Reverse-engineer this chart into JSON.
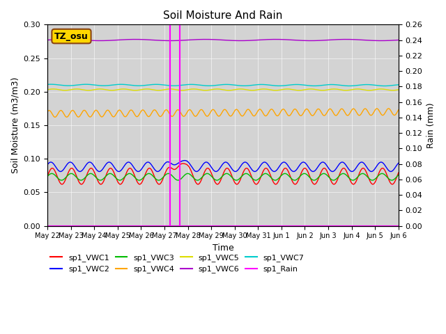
{
  "title": "Soil Moisture And Rain",
  "xlabel": "Time",
  "ylabel_left": "Soil Moisture (m3/m3)",
  "ylabel_right": "Rain (mm)",
  "annotation_text": "TZ_osu",
  "annotation_box_color": "#FFD700",
  "annotation_border_color": "#8B4513",
  "ylim_left": [
    0.0,
    0.3
  ],
  "ylim_right": [
    0.0,
    0.26
  ],
  "background_color": "#d3d3d3",
  "vline_positions": [
    5.25,
    5.65
  ],
  "vline_color": "#FF00FF",
  "series_order": [
    "sp1_VWC1",
    "sp1_VWC2",
    "sp1_VWC3",
    "sp1_VWC4",
    "sp1_VWC5",
    "sp1_VWC6",
    "sp1_VWC7"
  ],
  "series": {
    "sp1_VWC1": {
      "color": "#FF0000",
      "base": 0.074,
      "amp": 0.012,
      "period": 0.83,
      "phase": 0.0,
      "trend": 0.0
    },
    "sp1_VWC2": {
      "color": "#0000FF",
      "base": 0.088,
      "amp": 0.007,
      "period": 0.83,
      "phase": 0.15,
      "trend": 0.0
    },
    "sp1_VWC3": {
      "color": "#00BB00",
      "base": 0.073,
      "amp": 0.005,
      "period": 0.83,
      "phase": 0.05,
      "trend": 0.0
    },
    "sp1_VWC4": {
      "color": "#FFA500",
      "base": 0.167,
      "amp": 0.005,
      "period": 0.5,
      "phase": 0.2,
      "trend": 0.0002
    },
    "sp1_VWC5": {
      "color": "#DDDD00",
      "base": 0.203,
      "amp": 0.001,
      "period": 1.0,
      "phase": 0.0,
      "trend": 0.0
    },
    "sp1_VWC6": {
      "color": "#AA00CC",
      "base": 0.277,
      "amp": 0.001,
      "period": 3.0,
      "phase": 0.0,
      "trend": 0.0
    },
    "sp1_VWC7": {
      "color": "#00CCCC",
      "base": 0.21,
      "amp": 0.001,
      "period": 1.5,
      "phase": 0.3,
      "trend": -3e-05
    }
  },
  "legend_entries": [
    {
      "label": "sp1_VWC1",
      "color": "#FF0000"
    },
    {
      "label": "sp1_VWC2",
      "color": "#0000FF"
    },
    {
      "label": "sp1_VWC3",
      "color": "#00BB00"
    },
    {
      "label": "sp1_VWC4",
      "color": "#FFA500"
    },
    {
      "label": "sp1_VWC5",
      "color": "#DDDD00"
    },
    {
      "label": "sp1_VWC6",
      "color": "#AA00CC"
    },
    {
      "label": "sp1_VWC7",
      "color": "#00CCCC"
    },
    {
      "label": "sp1_Rain",
      "color": "#FF00FF"
    }
  ],
  "tick_labels": [
    "May 22",
    "May 23",
    "May 24",
    "May 25",
    "May 26",
    "May 27",
    "May 28",
    "May 29",
    "May 30",
    "May 31",
    "Jun 1",
    "Jun 2",
    "Jun 3",
    "Jun 4",
    "Jun 5",
    "Jun 6"
  ],
  "tick_positions": [
    0,
    1,
    2,
    3,
    4,
    5,
    6,
    7,
    8,
    9,
    10,
    11,
    12,
    13,
    14,
    15
  ]
}
